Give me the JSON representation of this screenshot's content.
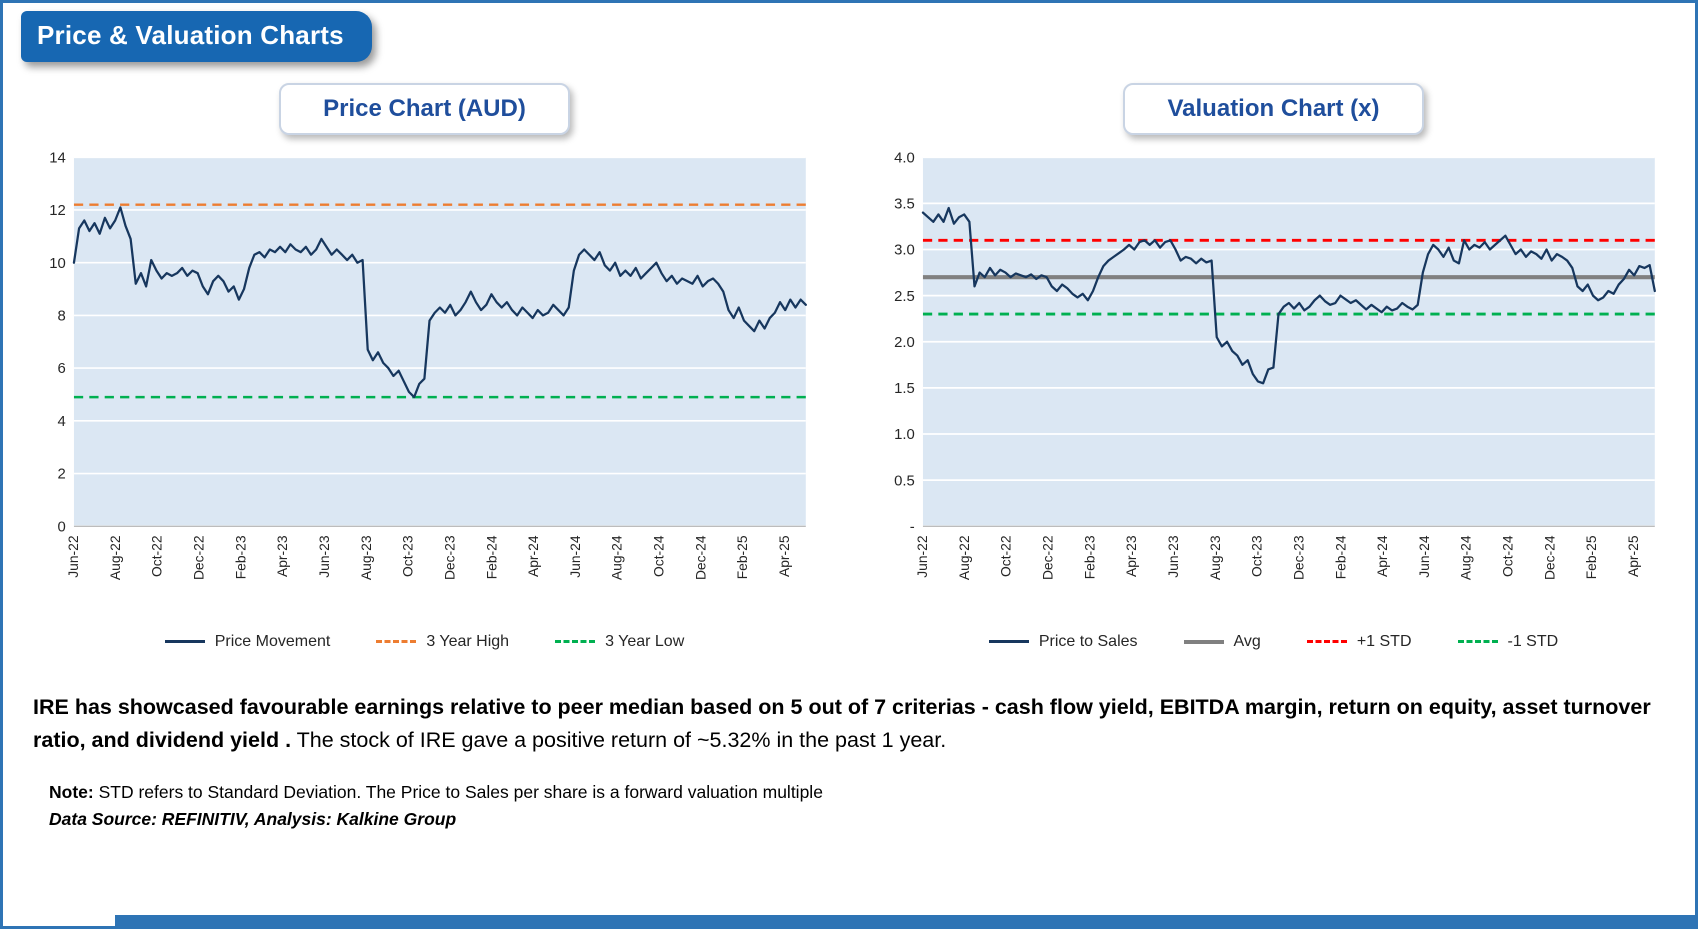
{
  "page": {
    "badge": "Price & Valuation Charts",
    "summary_bold": "IRE has showcased favourable earnings relative to peer median based on 5 out of 7 criterias - cash flow yield, EBITDA margin, return on equity, asset turnover ratio, and dividend yield .",
    "summary_regular": "The stock of IRE gave a positive return of ~5.32% in the past 1 year.",
    "note_label": "Note:",
    "note_text": "STD refers to Standard Deviation. The Price to Sales per share is a forward valuation multiple",
    "source": "Data Source: REFINITIV, Analysis: Kalkine Group"
  },
  "colors": {
    "frame_border": "#2e74b5",
    "badge_bg": "#1767b2",
    "title_text": "#1f4e9c",
    "plot_bg": "#dbe7f3",
    "navy_line": "#17375E",
    "orange_dash": "#ED7D31",
    "green_dash": "#00B050",
    "red_dash": "#FF0000",
    "gray_avg": "#808080"
  },
  "chart_data": [
    {
      "type": "line",
      "title": "Price Chart (AUD)",
      "plot_bg": "#dbe7f3",
      "ylim": [
        0,
        14
      ],
      "y_ticks": [
        {
          "value": 0,
          "label": "0"
        },
        {
          "value": 2,
          "label": "2"
        },
        {
          "value": 4,
          "label": "4"
        },
        {
          "value": 6,
          "label": "6"
        },
        {
          "value": 8,
          "label": "8"
        },
        {
          "value": 10,
          "label": "10"
        },
        {
          "value": 12,
          "label": "12"
        },
        {
          "value": 14,
          "label": "14"
        }
      ],
      "x_tick_labels": [
        "Jun-22",
        "Aug-22",
        "Oct-22",
        "Dec-22",
        "Feb-23",
        "Apr-23",
        "Jun-23",
        "Aug-23",
        "Oct-23",
        "Dec-23",
        "Feb-24",
        "Apr-24",
        "Jun-24",
        "Aug-24",
        "Oct-24",
        "Dec-24",
        "Feb-25",
        "Apr-25"
      ],
      "x_months_span": 35,
      "x_tick_interval": 2,
      "series": [
        {
          "name": "Price Movement",
          "color": "#17375E",
          "width": 2.2,
          "values": [
            10.0,
            11.3,
            11.6,
            11.2,
            11.5,
            11.1,
            11.7,
            11.3,
            11.6,
            12.1,
            11.4,
            10.9,
            9.2,
            9.6,
            9.1,
            10.1,
            9.7,
            9.4,
            9.6,
            9.5,
            9.6,
            9.8,
            9.5,
            9.7,
            9.6,
            9.1,
            8.8,
            9.3,
            9.5,
            9.3,
            8.9,
            9.1,
            8.6,
            9.0,
            9.8,
            10.3,
            10.4,
            10.2,
            10.5,
            10.4,
            10.6,
            10.4,
            10.7,
            10.5,
            10.4,
            10.6,
            10.3,
            10.5,
            10.9,
            10.6,
            10.3,
            10.5,
            10.3,
            10.1,
            10.3,
            10.0,
            10.1,
            6.7,
            6.3,
            6.6,
            6.2,
            6.0,
            5.7,
            5.9,
            5.5,
            5.1,
            4.9,
            5.4,
            5.6,
            7.8,
            8.1,
            8.3,
            8.1,
            8.4,
            8.0,
            8.2,
            8.5,
            8.9,
            8.5,
            8.2,
            8.4,
            8.8,
            8.5,
            8.3,
            8.5,
            8.2,
            8.0,
            8.3,
            8.1,
            7.9,
            8.2,
            8.0,
            8.1,
            8.4,
            8.2,
            8.0,
            8.3,
            9.7,
            10.3,
            10.5,
            10.3,
            10.1,
            10.4,
            9.9,
            9.7,
            10.0,
            9.5,
            9.7,
            9.5,
            9.8,
            9.4,
            9.6,
            9.8,
            10.0,
            9.6,
            9.3,
            9.5,
            9.2,
            9.4,
            9.3,
            9.2,
            9.5,
            9.1,
            9.3,
            9.4,
            9.2,
            8.9,
            8.2,
            7.9,
            8.3,
            7.8,
            7.6,
            7.4,
            7.8,
            7.5,
            7.9,
            8.1,
            8.5,
            8.2,
            8.6,
            8.3,
            8.6,
            8.4
          ]
        }
      ],
      "ref_lines": [
        {
          "name": "3 Year High",
          "value": 12.2,
          "color": "#ED7D31",
          "dash": true,
          "width": 2.4
        },
        {
          "name": "3 Year Low",
          "value": 4.9,
          "color": "#00B050",
          "dash": true,
          "width": 2.4
        }
      ],
      "legend": [
        {
          "label": "Price Movement",
          "color": "#17375E",
          "style": "solid",
          "weight": 3
        },
        {
          "label": "3 Year High",
          "color": "#ED7D31",
          "style": "dashed",
          "weight": 3
        },
        {
          "label": "3 Year Low",
          "color": "#00B050",
          "style": "dashed",
          "weight": 3
        }
      ]
    },
    {
      "type": "line",
      "title": "Valuation Chart (x)",
      "plot_bg": "#dbe7f3",
      "ylim": [
        0,
        4
      ],
      "y_ticks": [
        {
          "value": 0,
          "label": "-"
        },
        {
          "value": 0.5,
          "label": "0.5"
        },
        {
          "value": 1.0,
          "label": "1.0"
        },
        {
          "value": 1.5,
          "label": "1.5"
        },
        {
          "value": 2.0,
          "label": "2.0"
        },
        {
          "value": 2.5,
          "label": "2.5"
        },
        {
          "value": 3.0,
          "label": "3.0"
        },
        {
          "value": 3.5,
          "label": "3.5"
        },
        {
          "value": 4.0,
          "label": "4.0"
        }
      ],
      "x_tick_labels": [
        "Jun-22",
        "Aug-22",
        "Oct-22",
        "Dec-22",
        "Feb-23",
        "Apr-23",
        "Jun-23",
        "Aug-23",
        "Oct-23",
        "Dec-23",
        "Feb-24",
        "Apr-24",
        "Jun-24",
        "Aug-24",
        "Oct-24",
        "Dec-24",
        "Feb-25",
        "Apr-25"
      ],
      "x_months_span": 35,
      "x_tick_interval": 2,
      "series": [
        {
          "name": "Price to Sales",
          "color": "#17375E",
          "width": 2.2,
          "values": [
            3.4,
            3.35,
            3.3,
            3.38,
            3.3,
            3.45,
            3.28,
            3.35,
            3.38,
            3.3,
            2.6,
            2.75,
            2.7,
            2.8,
            2.72,
            2.78,
            2.75,
            2.7,
            2.74,
            2.72,
            2.7,
            2.73,
            2.68,
            2.72,
            2.7,
            2.6,
            2.55,
            2.62,
            2.58,
            2.52,
            2.48,
            2.52,
            2.45,
            2.55,
            2.7,
            2.82,
            2.88,
            2.92,
            2.96,
            3.0,
            3.05,
            3.0,
            3.08,
            3.1,
            3.05,
            3.1,
            3.02,
            3.08,
            3.1,
            3.0,
            2.88,
            2.92,
            2.9,
            2.85,
            2.9,
            2.86,
            2.88,
            2.05,
            1.95,
            2.0,
            1.9,
            1.85,
            1.75,
            1.8,
            1.65,
            1.57,
            1.55,
            1.7,
            1.72,
            2.3,
            2.38,
            2.42,
            2.36,
            2.42,
            2.34,
            2.38,
            2.45,
            2.5,
            2.44,
            2.4,
            2.42,
            2.5,
            2.46,
            2.42,
            2.45,
            2.4,
            2.35,
            2.4,
            2.36,
            2.32,
            2.38,
            2.34,
            2.36,
            2.42,
            2.38,
            2.35,
            2.4,
            2.75,
            2.95,
            3.05,
            3.0,
            2.92,
            3.02,
            2.88,
            2.85,
            3.1,
            3.0,
            3.05,
            3.02,
            3.08,
            3.0,
            3.05,
            3.1,
            3.15,
            3.05,
            2.95,
            3.0,
            2.92,
            2.98,
            2.95,
            2.9,
            3.0,
            2.88,
            2.95,
            2.92,
            2.88,
            2.8,
            2.6,
            2.55,
            2.62,
            2.5,
            2.45,
            2.48,
            2.55,
            2.52,
            2.62,
            2.68,
            2.78,
            2.72,
            2.82,
            2.8,
            2.83,
            2.55
          ]
        }
      ],
      "ref_lines": [
        {
          "name": "Avg",
          "value": 2.7,
          "color": "#808080",
          "dash": false,
          "width": 4
        },
        {
          "name": "+1 STD",
          "value": 3.1,
          "color": "#FF0000",
          "dash": true,
          "width": 2.8
        },
        {
          "name": "-1 STD",
          "value": 2.3,
          "color": "#00B050",
          "dash": true,
          "width": 2.8
        }
      ],
      "legend": [
        {
          "label": "Price to Sales",
          "color": "#17375E",
          "style": "solid",
          "weight": 3
        },
        {
          "label": "Avg",
          "color": "#808080",
          "style": "solid",
          "weight": 4
        },
        {
          "label": "+1 STD",
          "color": "#FF0000",
          "style": "dashed",
          "weight": 3
        },
        {
          "label": "-1 STD",
          "color": "#00B050",
          "style": "dashed",
          "weight": 3
        }
      ]
    }
  ]
}
